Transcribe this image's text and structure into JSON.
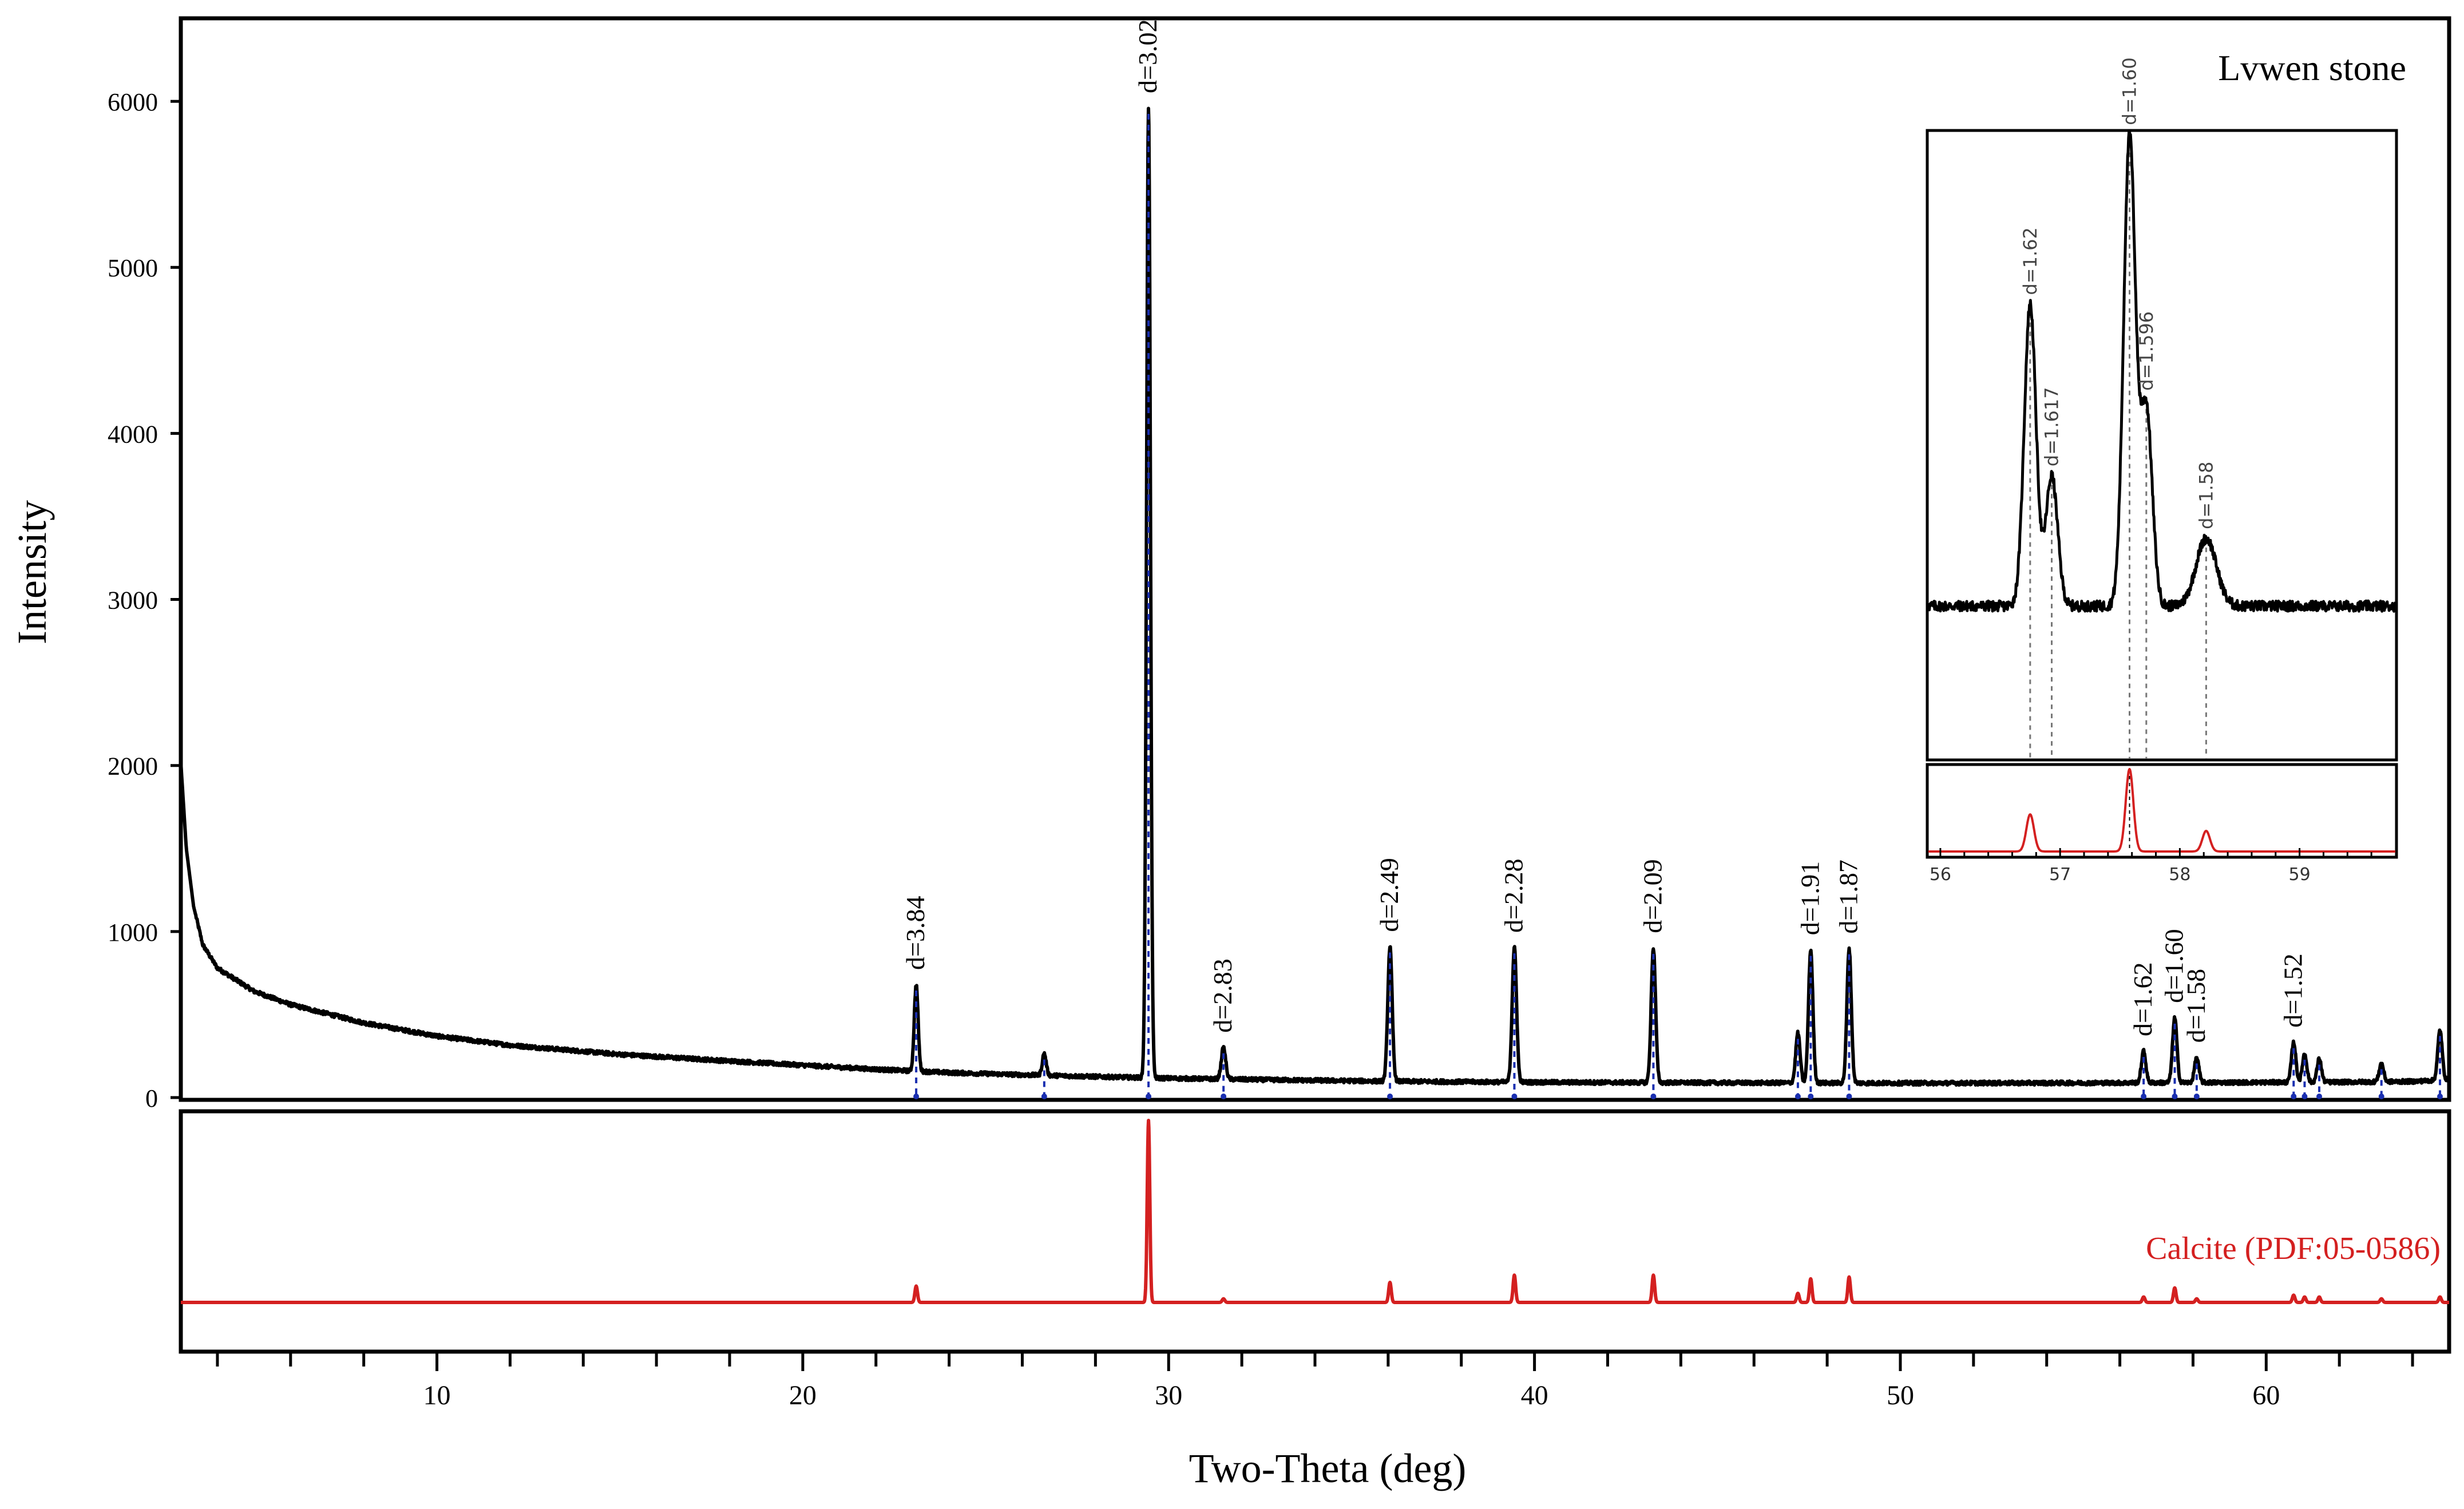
{
  "chart_data": {
    "type": "line",
    "sample_label": "Lvwen stone",
    "xlabel": "Two-Theta (deg)",
    "ylabel": "Intensity",
    "xlim": [
      3,
      65
    ],
    "ylim": [
      0,
      6500
    ],
    "x_ticks": [
      10,
      20,
      30,
      40,
      50,
      60
    ],
    "y_ticks": [
      0,
      1000,
      2000,
      3000,
      4000,
      5000,
      6000
    ],
    "grid": false,
    "colors": {
      "sample": "#000000",
      "reference": "#d42020",
      "marker": "#1a2fb0",
      "inset_guides": "#777777"
    },
    "background": {
      "points": [
        [
          3.0,
          2020
        ],
        [
          3.15,
          1500
        ],
        [
          3.35,
          1150
        ],
        [
          3.6,
          920
        ],
        [
          4,
          780
        ],
        [
          5,
          640
        ],
        [
          6,
          560
        ],
        [
          8,
          450
        ],
        [
          10,
          370
        ],
        [
          12,
          315
        ],
        [
          15,
          260
        ],
        [
          18,
          220
        ],
        [
          20,
          195
        ],
        [
          22,
          170
        ],
        [
          24,
          150
        ],
        [
          26,
          137
        ],
        [
          28,
          126
        ],
        [
          30,
          116
        ],
        [
          33,
          106
        ],
        [
          36,
          98
        ],
        [
          40,
          92
        ],
        [
          45,
          89
        ],
        [
          50,
          87
        ],
        [
          55,
          88
        ],
        [
          58,
          90
        ],
        [
          62,
          93
        ],
        [
          64,
          97
        ],
        [
          65,
          108
        ]
      ],
      "noise_amplitude": 12
    },
    "peaks": [
      {
        "two_theta": 23.1,
        "intensity": 520,
        "d_label": "d=3.84"
      },
      {
        "two_theta": 26.6,
        "intensity": 130,
        "d_label": ""
      },
      {
        "two_theta": 29.45,
        "intensity": 5840,
        "d_label": "d=3.02"
      },
      {
        "two_theta": 31.5,
        "intensity": 190,
        "d_label": "d=2.83"
      },
      {
        "two_theta": 36.05,
        "intensity": 810,
        "d_label": "d=2.49"
      },
      {
        "two_theta": 39.45,
        "intensity": 810,
        "d_label": "d=2.28"
      },
      {
        "two_theta": 43.25,
        "intensity": 810,
        "d_label": "d=2.09"
      },
      {
        "two_theta": 47.2,
        "intensity": 300,
        "d_label": ""
      },
      {
        "two_theta": 47.55,
        "intensity": 800,
        "d_label": "d=1.91"
      },
      {
        "two_theta": 48.6,
        "intensity": 810,
        "d_label": "d=1.87"
      },
      {
        "two_theta": 56.65,
        "intensity": 190,
        "d_label": "d=1.62"
      },
      {
        "two_theta": 57.5,
        "intensity": 390,
        "d_label": "d=1.60"
      },
      {
        "two_theta": 58.1,
        "intensity": 150,
        "d_label": "d=1.58"
      },
      {
        "two_theta": 60.75,
        "intensity": 240,
        "d_label": "d=1.52"
      },
      {
        "two_theta": 61.05,
        "intensity": 170,
        "d_label": ""
      },
      {
        "two_theta": 61.45,
        "intensity": 140,
        "d_label": ""
      },
      {
        "two_theta": 63.15,
        "intensity": 110,
        "d_label": ""
      },
      {
        "two_theta": 64.75,
        "intensity": 300,
        "d_label": ""
      }
    ],
    "reference": {
      "label": "Calcite (PDF:05-0586)",
      "peaks": [
        {
          "two_theta": 23.1,
          "intensity": 9
        },
        {
          "two_theta": 29.45,
          "intensity": 100
        },
        {
          "two_theta": 31.5,
          "intensity": 2
        },
        {
          "two_theta": 36.05,
          "intensity": 11
        },
        {
          "two_theta": 39.45,
          "intensity": 15
        },
        {
          "two_theta": 43.25,
          "intensity": 15
        },
        {
          "two_theta": 47.2,
          "intensity": 5
        },
        {
          "two_theta": 47.55,
          "intensity": 13
        },
        {
          "two_theta": 48.6,
          "intensity": 14
        },
        {
          "two_theta": 56.65,
          "intensity": 3
        },
        {
          "two_theta": 57.5,
          "intensity": 8
        },
        {
          "two_theta": 58.1,
          "intensity": 2
        },
        {
          "two_theta": 60.75,
          "intensity": 4
        },
        {
          "two_theta": 61.05,
          "intensity": 3
        },
        {
          "two_theta": 61.45,
          "intensity": 3
        },
        {
          "two_theta": 63.15,
          "intensity": 2
        },
        {
          "two_theta": 64.75,
          "intensity": 3
        }
      ]
    },
    "inset": {
      "xlim": [
        55.9,
        59.8
      ],
      "x_ticks": [
        56,
        57,
        58,
        59
      ],
      "ylim": [
        0,
        1100
      ],
      "baseline": 210,
      "peaks": [
        {
          "two_theta": 56.75,
          "intensity": 580,
          "d_label": "d=1.62"
        },
        {
          "two_theta": 56.93,
          "intensity": 250,
          "d_label": "d=1.617"
        },
        {
          "two_theta": 57.58,
          "intensity": 900,
          "d_label": "d=1.60"
        },
        {
          "two_theta": 57.72,
          "intensity": 380,
          "d_label": "d=1.596"
        },
        {
          "two_theta": 58.22,
          "intensity": 130,
          "d_label": "d=1.58"
        }
      ],
      "reference_peaks": [
        {
          "two_theta": 56.75,
          "intensity": 45
        },
        {
          "two_theta": 57.58,
          "intensity": 100
        },
        {
          "two_theta": 58.22,
          "intensity": 25
        }
      ]
    }
  }
}
